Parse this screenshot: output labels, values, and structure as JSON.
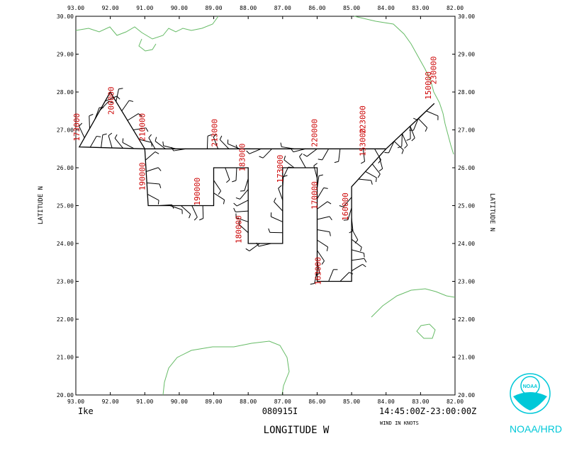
{
  "axes": {
    "lon_ticks": [
      "93.00",
      "92.00",
      "91.00",
      "90.00",
      "89.00",
      "88.00",
      "87.00",
      "86.00",
      "85.00",
      "84.00",
      "83.00",
      "82.00"
    ],
    "lat_ticks": [
      "30.00",
      "29.00",
      "28.00",
      "27.00",
      "26.00",
      "25.00",
      "24.00",
      "23.00",
      "22.00",
      "21.00",
      "20.00"
    ],
    "lon_range": [
      -93,
      -82
    ],
    "lat_range": [
      20,
      30
    ],
    "xlabel": "LONGITUDE   W",
    "ylabel_left": "LATITUDE   N",
    "ylabel_right": "LATITUDE   N"
  },
  "footer": {
    "storm": "Ike",
    "flight_id": "080915I",
    "time_range": "14:45:00Z-23:00:00Z",
    "units": "WIND IN KNOTS",
    "logo_text": "NOAA",
    "org": "NOAA/HRD"
  },
  "colors": {
    "coast": "#66bb66",
    "time_label": "#cc0000",
    "track": "#000000",
    "logo": "#00c8d8"
  },
  "chart_data": {
    "type": "map-flight-track",
    "track": [
      {
        "lon": -82.6,
        "lat": 27.7
      },
      {
        "lon": -84.0,
        "lat": 26.5
      },
      {
        "lon": -85.0,
        "lat": 26.5
      },
      {
        "lon": -87.0,
        "lat": 26.5
      },
      {
        "lon": -89.5,
        "lat": 26.5
      },
      {
        "lon": -91.0,
        "lat": 26.5
      },
      {
        "lon": -92.9,
        "lat": 26.55
      },
      {
        "lon": -92.0,
        "lat": 28.0
      },
      {
        "lon": -91.0,
        "lat": 26.5
      },
      {
        "lon": -90.9,
        "lat": 25.0
      },
      {
        "lon": -89.0,
        "lat": 25.0
      },
      {
        "lon": -89.0,
        "lat": 26.0
      },
      {
        "lon": -88.0,
        "lat": 26.0
      },
      {
        "lon": -88.0,
        "lat": 24.0
      },
      {
        "lon": -87.0,
        "lat": 24.0
      },
      {
        "lon": -87.0,
        "lat": 26.0
      },
      {
        "lon": -86.0,
        "lat": 26.0
      },
      {
        "lon": -86.0,
        "lat": 23.0
      },
      {
        "lon": -85.0,
        "lat": 23.0
      },
      {
        "lon": -85.0,
        "lat": 25.5
      },
      {
        "lon": -84.0,
        "lat": 26.5
      },
      {
        "lon": -82.6,
        "lat": 27.7
      }
    ],
    "time_labels": [
      {
        "text": "173000",
        "lon": -92.9,
        "lat": 26.7
      },
      {
        "text": "200000",
        "lon": -91.9,
        "lat": 27.4
      },
      {
        "text": "210000",
        "lon": -91.0,
        "lat": 26.7
      },
      {
        "text": "190000",
        "lon": -91.0,
        "lat": 25.4
      },
      {
        "text": "190000",
        "lon": -89.4,
        "lat": 25.0
      },
      {
        "text": "213000",
        "lon": -88.9,
        "lat": 26.55
      },
      {
        "text": "183000",
        "lon": -88.1,
        "lat": 25.9
      },
      {
        "text": "180000",
        "lon": -88.2,
        "lat": 24.0
      },
      {
        "text": "173000",
        "lon": -87.0,
        "lat": 25.6
      },
      {
        "text": "220000",
        "lon": -86.0,
        "lat": 26.55
      },
      {
        "text": "170000",
        "lon": -86.0,
        "lat": 24.9
      },
      {
        "text": "163000",
        "lon": -85.9,
        "lat": 22.9
      },
      {
        "text": "160000",
        "lon": -85.1,
        "lat": 24.6
      },
      {
        "text": "223000",
        "lon": -84.6,
        "lat": 26.9
      },
      {
        "text": "153000",
        "lon": -84.6,
        "lat": 26.3
      },
      {
        "text": "150000",
        "lon": -82.7,
        "lat": 27.8
      },
      {
        "text": "230000",
        "lon": -82.55,
        "lat": 28.2
      }
    ]
  }
}
